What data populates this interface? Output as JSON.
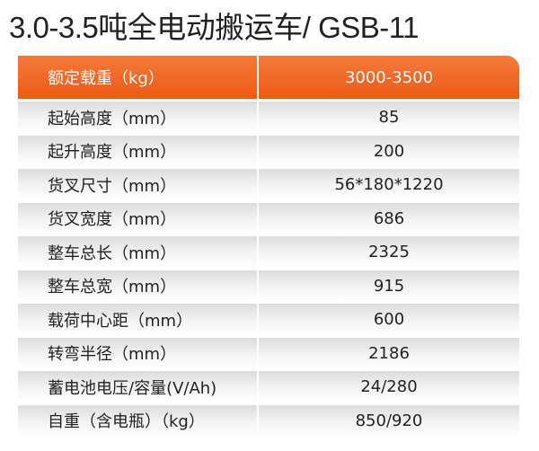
{
  "title": "3.0-3.5吨全电动搬运车/ GSB-11",
  "table": {
    "header": [
      "额定载重（kg）",
      "3000-3500"
    ],
    "rows": [
      [
        "起始高度（mm）",
        "85"
      ],
      [
        "起升高度（mm）",
        "200"
      ],
      [
        "货叉尺寸（mm）",
        "56*180*1220"
      ],
      [
        "货叉宽度（mm）",
        "686"
      ],
      [
        "整车总长（mm）",
        "2325"
      ],
      [
        "整车总宽（mm）",
        "915"
      ],
      [
        "载荷中心距（mm）",
        "600"
      ],
      [
        "转弯半径（mm）",
        "2186"
      ],
      [
        "蓄电池电压/容量(V/Ah)",
        "24/280"
      ],
      [
        "自重（含电瓶）（kg）",
        "850/920"
      ]
    ]
  }
}
